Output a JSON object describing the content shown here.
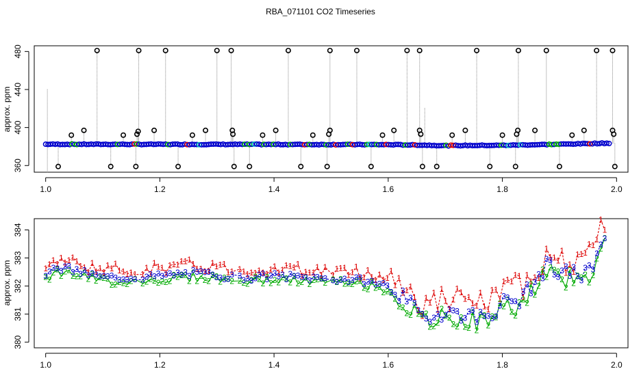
{
  "title": "RBA_071101  CO2 Timeseries",
  "colors": {
    "ch1": "#dd0000",
    "ch2": "#00aa00",
    "ch3": "#0000cc",
    "cyan": "#00bbbb",
    "outlier": "#000000",
    "stem": "#888888"
  },
  "chart_data": [
    {
      "type": "scatter",
      "panel": "top",
      "xlabel": "",
      "ylabel": "approx. ppm",
      "xlim": [
        0.98,
        2.02
      ],
      "ylim": [
        353,
        486
      ],
      "xticks": [
        "1.0",
        "1.2",
        "1.4",
        "1.6",
        "1.8",
        "2.0"
      ],
      "xtick_values": [
        1.0,
        1.2,
        1.4,
        1.6,
        1.8,
        2.0
      ],
      "yticks": [
        "360",
        "400",
        "440",
        "480"
      ],
      "ytick_values": [
        360,
        400,
        440,
        480
      ],
      "baseline": {
        "x": [
          1.0,
          1.2,
          1.4,
          1.6,
          1.65,
          1.7,
          1.8,
          1.9,
          1.98
        ],
        "y": [
          382.4,
          382.3,
          382.2,
          382.0,
          381.6,
          381.0,
          381.3,
          382.4,
          383.5
        ]
      },
      "outliers_high": [
        1.09,
        1.163,
        1.21,
        1.3,
        1.325,
        1.425,
        1.498,
        1.545,
        1.633,
        1.655,
        1.755,
        1.828,
        1.877,
        1.965,
        1.993
      ],
      "outliers_low": [
        1.022,
        1.114,
        1.158,
        1.232,
        1.33,
        1.357,
        1.447,
        1.493,
        1.57,
        1.66,
        1.685,
        1.778,
        1.823,
        1.9,
        1.997
      ],
      "outliers_mid": [
        {
          "x": 1.045,
          "y": 392
        },
        {
          "x": 1.067,
          "y": 397
        },
        {
          "x": 1.136,
          "y": 392
        },
        {
          "x": 1.16,
          "y": 393
        },
        {
          "x": 1.162,
          "y": 396
        },
        {
          "x": 1.19,
          "y": 397
        },
        {
          "x": 1.257,
          "y": 392
        },
        {
          "x": 1.28,
          "y": 397
        },
        {
          "x": 1.327,
          "y": 397
        },
        {
          "x": 1.328,
          "y": 393
        },
        {
          "x": 1.38,
          "y": 392
        },
        {
          "x": 1.403,
          "y": 397
        },
        {
          "x": 1.468,
          "y": 392
        },
        {
          "x": 1.496,
          "y": 393
        },
        {
          "x": 1.498,
          "y": 397
        },
        {
          "x": 1.59,
          "y": 392
        },
        {
          "x": 1.61,
          "y": 397
        },
        {
          "x": 1.655,
          "y": 397
        },
        {
          "x": 1.657,
          "y": 393
        },
        {
          "x": 1.712,
          "y": 392
        },
        {
          "x": 1.735,
          "y": 397
        },
        {
          "x": 1.8,
          "y": 392
        },
        {
          "x": 1.825,
          "y": 393
        },
        {
          "x": 1.827,
          "y": 397
        },
        {
          "x": 1.857,
          "y": 397
        },
        {
          "x": 1.922,
          "y": 392
        },
        {
          "x": 1.943,
          "y": 397
        },
        {
          "x": 1.993,
          "y": 397
        },
        {
          "x": 1.995,
          "y": 393
        }
      ]
    },
    {
      "type": "line",
      "panel": "bottom",
      "xlabel": "",
      "ylabel": "approx. ppm",
      "xlim": [
        0.98,
        2.02
      ],
      "ylim": [
        379.8,
        384.4
      ],
      "xticks": [
        "1.0",
        "1.2",
        "1.4",
        "1.6",
        "1.8",
        "2.0"
      ],
      "xtick_values": [
        1.0,
        1.2,
        1.4,
        1.6,
        1.8,
        2.0
      ],
      "yticks": [
        "380",
        "381",
        "382",
        "383",
        "384"
      ],
      "ytick_values": [
        380,
        381,
        382,
        383,
        384
      ],
      "trend": {
        "x": [
          1.0,
          1.03,
          1.06,
          1.1,
          1.15,
          1.2,
          1.25,
          1.3,
          1.33,
          1.36,
          1.4,
          1.45,
          1.5,
          1.55,
          1.58,
          1.6,
          1.62,
          1.64,
          1.66,
          1.68,
          1.7,
          1.73,
          1.76,
          1.78,
          1.8,
          1.83,
          1.86,
          1.88,
          1.9,
          1.92,
          1.94,
          1.96,
          1.98
        ],
        "y": [
          382.45,
          382.65,
          382.5,
          382.3,
          382.3,
          382.35,
          382.45,
          382.4,
          382.3,
          382.3,
          382.35,
          382.3,
          382.25,
          382.2,
          382.1,
          382.0,
          381.7,
          381.3,
          380.9,
          380.95,
          381.1,
          381.0,
          380.9,
          381.0,
          381.4,
          381.5,
          382.2,
          382.8,
          382.3,
          382.6,
          382.3,
          382.8,
          384.0
        ]
      },
      "series": [
        {
          "name": "1",
          "marker": "1",
          "offset": 0.28,
          "spread": 0.22
        },
        {
          "name": "2",
          "marker": "2",
          "offset": -0.12,
          "spread": 0.16
        },
        {
          "name": "3",
          "marker": "3",
          "offset": 0.0,
          "spread": 0.12
        }
      ]
    }
  ]
}
